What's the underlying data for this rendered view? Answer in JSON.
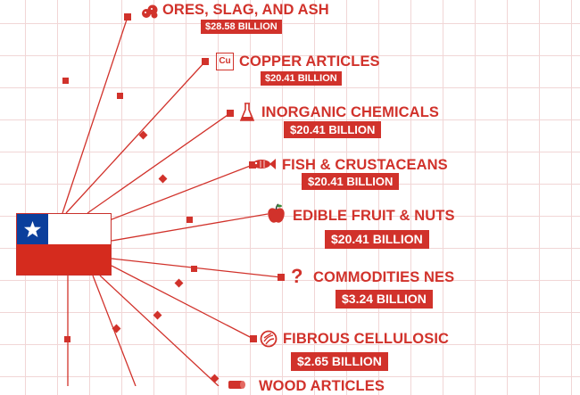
{
  "country_flag": {
    "name": "chile-flag-icon",
    "colors": {
      "red": "#d52b1e",
      "white": "#ffffff",
      "blue": "#0b3f9c"
    }
  },
  "accent_color": "#d1322b",
  "exports": [
    {
      "label": "ORES, SLAG, AND ASH",
      "value": "$28.58 BILLION",
      "icon": "ore-rocks-icon"
    },
    {
      "label": "COPPER ARTICLES",
      "value": "$20.41 BILLION",
      "icon": "copper-element-icon",
      "icon_text": "Cu"
    },
    {
      "label": "INORGANIC CHEMICALS",
      "value": "$20.41 BILLION",
      "icon": "flask-icon"
    },
    {
      "label": "FISH & CRUSTACEANS",
      "value": "$20.41 BILLION",
      "icon": "fish-icon"
    },
    {
      "label": "EDIBLE FRUIT & NUTS",
      "value": "$20.41 BILLION",
      "icon": "apple-icon"
    },
    {
      "label": "COMMODITIES NES",
      "value": "$3.24 BILLION",
      "icon": "question-mark-icon",
      "icon_text": "?"
    },
    {
      "label": "FIBROUS CELLULOSIC",
      "value": "$2.65 BILLION",
      "icon": "fibrous-pulp-icon"
    },
    {
      "label": "WOOD ARTICLES",
      "value": "",
      "icon": "wood-log-icon"
    }
  ]
}
